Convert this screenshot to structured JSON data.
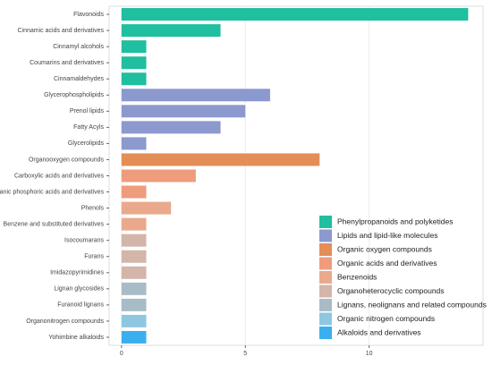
{
  "chart_data": {
    "type": "bar",
    "orientation": "horizontal",
    "categories": [
      "Flavonoids",
      "Cinnamic acids and derivatives",
      "Cinnamyl alcohols",
      "Coumarins and derivatives",
      "Cinnamaldehydes",
      "Glycerophospholipids",
      "Prenol lipids",
      "Fatty Acyls",
      "Glycerolipids",
      "Organooxygen compounds",
      "Carboxylic acids and derivatives",
      "Organic phosphoric acids and derivatives",
      "Phenols",
      "Benzene and substituted derivatives",
      "Isocoumarans",
      "Furans",
      "Imidazopyrimidines",
      "Lignan glycosides",
      "Furanoid lignans",
      "Organonitrogen compounds",
      "Yohimbine alkaloids"
    ],
    "series": [
      {
        "name": "Phenylpropanoids and polyketides",
        "color": "#1fbf9f",
        "values": [
          14,
          4,
          1,
          1,
          1,
          null,
          null,
          null,
          null,
          null,
          null,
          null,
          null,
          null,
          null,
          null,
          null,
          null,
          null,
          null,
          null
        ]
      },
      {
        "name": "Lipids and lipid-like molecules",
        "color": "#8c99cf",
        "values": [
          null,
          null,
          null,
          null,
          null,
          6,
          5,
          4,
          1,
          null,
          null,
          null,
          null,
          null,
          null,
          null,
          null,
          null,
          null,
          null,
          null
        ]
      },
      {
        "name": "Organic oxygen compounds",
        "color": "#e38d57",
        "values": [
          null,
          null,
          null,
          null,
          null,
          null,
          null,
          null,
          null,
          8,
          null,
          null,
          null,
          null,
          null,
          null,
          null,
          null,
          null,
          null,
          null
        ]
      },
      {
        "name": "Organic acids and derivatives",
        "color": "#ee9c7c",
        "values": [
          null,
          null,
          null,
          null,
          null,
          null,
          null,
          null,
          null,
          null,
          3,
          1,
          null,
          null,
          null,
          null,
          null,
          null,
          null,
          null,
          null
        ]
      },
      {
        "name": "Benzenoids",
        "color": "#eaa98c",
        "values": [
          null,
          null,
          null,
          null,
          null,
          null,
          null,
          null,
          null,
          null,
          null,
          null,
          2,
          1,
          null,
          null,
          null,
          null,
          null,
          null,
          null
        ]
      },
      {
        "name": "Organoheterocyclic compounds",
        "color": "#d3b6a9",
        "values": [
          null,
          null,
          null,
          null,
          null,
          null,
          null,
          null,
          null,
          null,
          null,
          null,
          null,
          null,
          1,
          1,
          1,
          null,
          null,
          null,
          null
        ]
      },
      {
        "name": "Lignans, neolignans and related compounds",
        "color": "#a8bcc7",
        "values": [
          null,
          null,
          null,
          null,
          null,
          null,
          null,
          null,
          null,
          null,
          null,
          null,
          null,
          null,
          null,
          null,
          null,
          1,
          1,
          null,
          null
        ]
      },
      {
        "name": "Organic nitrogen compounds",
        "color": "#8ec7df",
        "values": [
          null,
          null,
          null,
          null,
          null,
          null,
          null,
          null,
          null,
          null,
          null,
          null,
          null,
          null,
          null,
          null,
          null,
          null,
          null,
          1,
          null
        ]
      },
      {
        "name": "Alkaloids and derivatives",
        "color": "#3aaff0",
        "values": [
          null,
          null,
          null,
          null,
          null,
          null,
          null,
          null,
          null,
          null,
          null,
          null,
          null,
          null,
          null,
          null,
          null,
          null,
          null,
          null,
          1
        ]
      }
    ],
    "xlim": [
      -0.5,
      14.6
    ],
    "xticks": [
      0,
      5,
      10
    ],
    "grid": true
  }
}
